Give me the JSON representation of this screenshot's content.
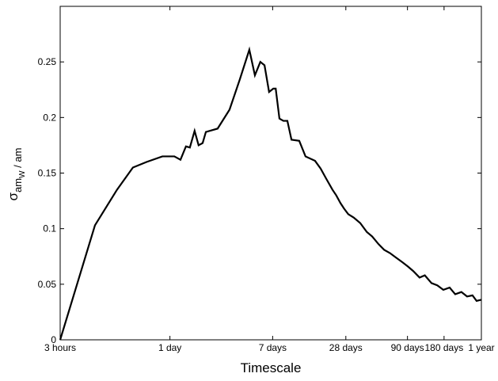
{
  "chart_data": {
    "type": "line",
    "xlabel": "Timescale",
    "ylabel": [
      "σ",
      "am",
      "W",
      " / am"
    ],
    "xscale": "log",
    "xlim": [
      3,
      8760
    ],
    "xticks": [
      {
        "value": 3,
        "label": "3 hours"
      },
      {
        "value": 24,
        "label": "1 day"
      },
      {
        "value": 168,
        "label": "7 days"
      },
      {
        "value": 672,
        "label": "28 days"
      },
      {
        "value": 2160,
        "label": "90 days"
      },
      {
        "value": 4320,
        "label": "180 days"
      },
      {
        "value": 8760,
        "label": "1 year"
      }
    ],
    "ylim": [
      0,
      0.3
    ],
    "yticks": [
      0,
      0.05,
      0.1,
      0.15,
      0.2,
      0.25
    ],
    "series": [
      {
        "color": "#000000",
        "x": [
          3,
          5.8,
          8.8,
          11.9,
          15.4,
          20.8,
          26.1,
          29.3,
          32.5,
          35,
          38.3,
          41.3,
          44.6,
          47.4,
          59.2,
          74.2,
          90,
          108,
          120,
          133,
          144,
          157,
          170,
          178,
          191,
          206,
          222,
          240,
          278,
          313,
          375,
          417,
          463,
          522,
          560,
          607,
          650,
          704,
          780,
          883,
          1000,
          1107,
          1250,
          1387,
          1550,
          1736,
          1950,
          2175,
          2400,
          2717,
          3000,
          3407,
          3800,
          4260,
          4800,
          5338,
          6000,
          6680,
          7400,
          8000,
          8760
        ],
        "values": [
          0,
          0.103,
          0.135,
          0.155,
          0.16,
          0.165,
          0.165,
          0.162,
          0.174,
          0.173,
          0.188,
          0.175,
          0.177,
          0.187,
          0.19,
          0.207,
          0.234,
          0.261,
          0.238,
          0.25,
          0.247,
          0.223,
          0.226,
          0.226,
          0.199,
          0.197,
          0.197,
          0.18,
          0.179,
          0.165,
          0.161,
          0.154,
          0.145,
          0.135,
          0.13,
          0.123,
          0.118,
          0.113,
          0.11,
          0.105,
          0.097,
          0.093,
          0.086,
          0.081,
          0.078,
          0.074,
          0.07,
          0.066,
          0.062,
          0.056,
          0.058,
          0.051,
          0.049,
          0.045,
          0.047,
          0.041,
          0.043,
          0.039,
          0.04,
          0.035,
          0.036
        ]
      }
    ]
  }
}
